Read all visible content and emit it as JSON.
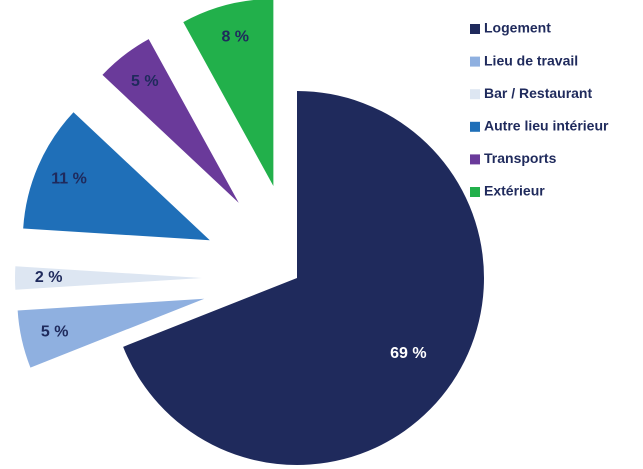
{
  "chart_data": {
    "type": "pie",
    "categories": [
      "Logement",
      "Lieu de travail",
      "Bar / Restaurant",
      "Autre lieu intérieur",
      "Transports",
      "Extérieur"
    ],
    "values": [
      69,
      5,
      2,
      11,
      5,
      8
    ],
    "value_labels": [
      "69 %",
      "5 %",
      "2 %",
      "11 %",
      "5 %",
      "8 %"
    ],
    "colors": [
      "#1f2a5c",
      "#8fb0e0",
      "#dde6f2",
      "#1f6fb8",
      "#6a3a9a",
      "#22b04b"
    ],
    "legend": "right"
  }
}
